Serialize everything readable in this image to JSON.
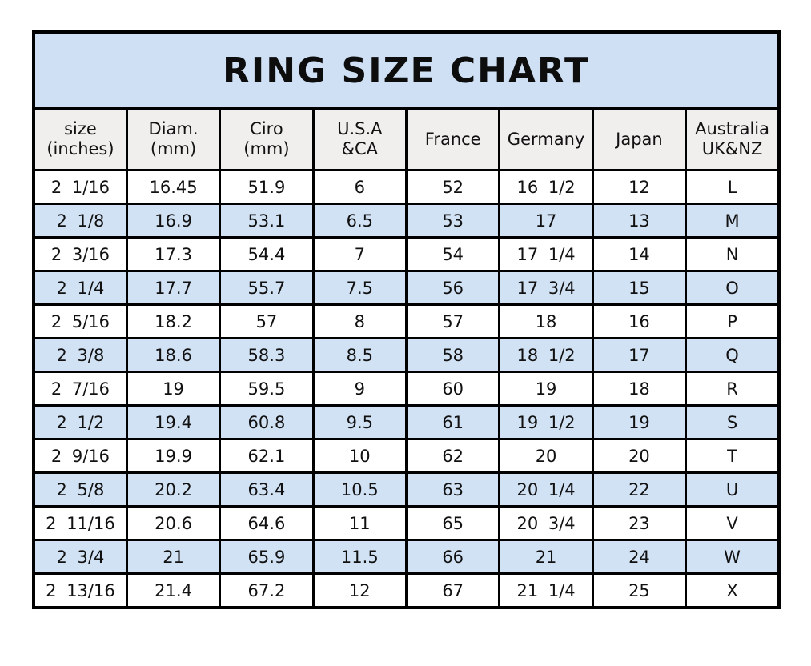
{
  "colors": {
    "title_bg": "#cfe0f4",
    "header_bg": "#f0efed",
    "row_bg": "#ffffff",
    "row_alt_bg": "#d2e2f5",
    "border": "#000000"
  },
  "chart_data": {
    "type": "table",
    "title": "RING SIZE CHART",
    "columns": [
      "size\n(inches)",
      "Diam.\n(mm)",
      "Ciro\n(mm)",
      "U.S.A\n&CA",
      "France",
      "Germany",
      "Japan",
      "Australia\nUK&NZ"
    ],
    "rows": [
      [
        "2 1/16",
        "16.45",
        "51.9",
        "6",
        "52",
        "16 1/2",
        "12",
        "L"
      ],
      [
        "2 1/8",
        "16.9",
        "53.1",
        "6.5",
        "53",
        "17",
        "13",
        "M"
      ],
      [
        "2 3/16",
        "17.3",
        "54.4",
        "7",
        "54",
        "17 1/4",
        "14",
        "N"
      ],
      [
        "2 1/4",
        "17.7",
        "55.7",
        "7.5",
        "56",
        "17 3/4",
        "15",
        "O"
      ],
      [
        "2 5/16",
        "18.2",
        "57",
        "8",
        "57",
        "18",
        "16",
        "P"
      ],
      [
        "2 3/8",
        "18.6",
        "58.3",
        "8.5",
        "58",
        "18 1/2",
        "17",
        "Q"
      ],
      [
        "2 7/16",
        "19",
        "59.5",
        "9",
        "60",
        "19",
        "18",
        "R"
      ],
      [
        "2 1/2",
        "19.4",
        "60.8",
        "9.5",
        "61",
        "19 1/2",
        "19",
        "S"
      ],
      [
        "2 9/16",
        "19.9",
        "62.1",
        "10",
        "62",
        "20",
        "20",
        "T"
      ],
      [
        "2 5/8",
        "20.2",
        "63.4",
        "10.5",
        "63",
        "20 1/4",
        "22",
        "U"
      ],
      [
        "2 11/16",
        "20.6",
        "64.6",
        "11",
        "65",
        "20 3/4",
        "23",
        "V"
      ],
      [
        "2 3/4",
        "21",
        "65.9",
        "11.5",
        "66",
        "21",
        "24",
        "W"
      ],
      [
        "2 13/16",
        "21.4",
        "67.2",
        "12",
        "67",
        "21 1/4",
        "25",
        "X"
      ]
    ]
  }
}
